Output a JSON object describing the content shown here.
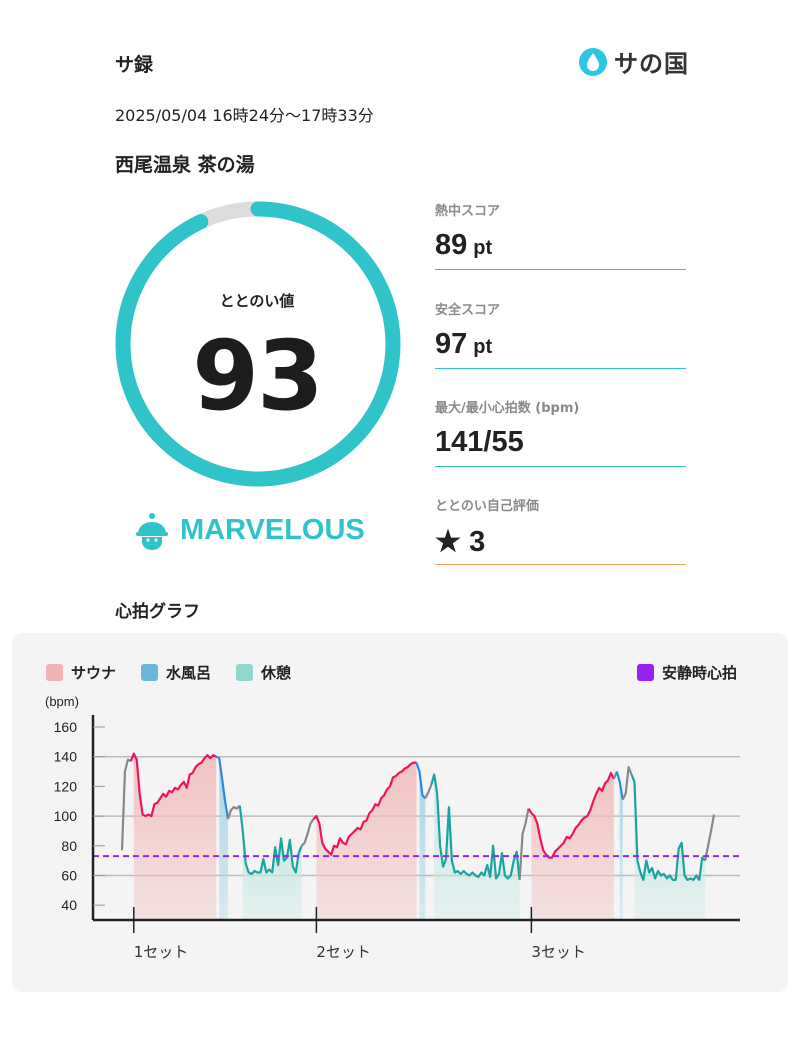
{
  "header": {
    "title": "サ録",
    "logo_text": "サの国",
    "date": "2025/05/04 16時24分〜17時33分",
    "facility": "西尾温泉 茶の湯"
  },
  "score": {
    "label": "ととのい値",
    "value": "93",
    "fraction": 0.93,
    "rank": "MARVELOUS",
    "accent": "#2ec4c9"
  },
  "stats": [
    {
      "label": "熱中スコア",
      "value": "89",
      "unit": "pt"
    },
    {
      "label": "安全スコア",
      "value": "97",
      "unit": "pt"
    },
    {
      "label": "最大/最小心拍数 (bpm)",
      "value": "141/55",
      "unit": ""
    },
    {
      "label": "ととのい自己評価",
      "value": "3",
      "unit": "",
      "icon": "star-icon"
    }
  ],
  "graph": {
    "title": "心拍グラフ"
  },
  "chart_data": {
    "type": "line",
    "ylabel": "(bpm)",
    "yticks": [
      160,
      140,
      120,
      100,
      80,
      60,
      40
    ],
    "ylim": [
      30,
      170
    ],
    "gridlines": [
      140,
      100,
      60
    ],
    "resting_hr": 73,
    "legend": [
      {
        "label": "サウナ",
        "color": "#f2b3b3"
      },
      {
        "label": "水風呂",
        "color": "#6ab7dd"
      },
      {
        "label": "休憩",
        "color": "#8fd8cf"
      }
    ],
    "resting_legend": {
      "label": "安静時心拍",
      "color": "#9b1ff5"
    },
    "phase_colors": {
      "sauna": "#f0145a",
      "water": "#2a8ae0",
      "rest": "#1aa3a0",
      "other": "#888888"
    },
    "set_labels": [
      "1セット",
      "2セット",
      "3セット"
    ],
    "segments": [
      {
        "phase": "other",
        "values": [
          77,
          130,
          138,
          137
        ]
      },
      {
        "phase": "sauna",
        "set": 0,
        "values": [
          142,
          138,
          115,
          101,
          100,
          101,
          100,
          108,
          109,
          112,
          115,
          113,
          117,
          116,
          119,
          118,
          121,
          123,
          119,
          128,
          129,
          133,
          135,
          136,
          139,
          141,
          139,
          141,
          140
        ]
      },
      {
        "phase": "water",
        "values": [
          139,
          125,
          110,
          98
        ]
      },
      {
        "phase": "other",
        "values": [
          104,
          106,
          105,
          107
        ]
      },
      {
        "phase": "rest",
        "values": [
          90,
          68,
          62,
          61,
          63,
          62,
          62,
          71,
          62,
          64,
          62,
          79,
          67,
          85,
          70,
          72,
          84,
          66,
          62,
          75,
          80
        ]
      },
      {
        "phase": "other",
        "values": [
          82,
          88,
          95,
          98
        ]
      },
      {
        "phase": "sauna",
        "set": 1,
        "values": [
          100,
          95,
          82,
          78,
          76,
          74,
          80,
          79,
          85,
          82,
          81,
          86,
          88,
          90,
          92,
          91,
          96,
          97,
          102,
          104,
          108,
          107,
          112,
          114,
          118,
          120,
          126,
          127,
          129,
          130,
          132,
          133,
          135,
          136,
          136
        ]
      },
      {
        "phase": "water",
        "values": [
          130,
          114,
          112
        ]
      },
      {
        "phase": "other",
        "values": [
          116,
          121
        ]
      },
      {
        "phase": "rest",
        "values": [
          128,
          115,
          80,
          66,
          71,
          106,
          70,
          62,
          63,
          61,
          63,
          61,
          60,
          62,
          60,
          59,
          62,
          60,
          67,
          59,
          80,
          58,
          61,
          75,
          60,
          58,
          60,
          70,
          76,
          57
        ]
      },
      {
        "phase": "other",
        "values": [
          88,
          95,
          105
        ]
      },
      {
        "phase": "sauna",
        "set": 2,
        "values": [
          102,
          100,
          95,
          85,
          77,
          74,
          72,
          72,
          76,
          78,
          80,
          82,
          86,
          85,
          88,
          92,
          94,
          97,
          99,
          100,
          104,
          110,
          115,
          119,
          117,
          122,
          124,
          129,
          125
        ]
      },
      {
        "phase": "other",
        "values": [
          130
        ]
      },
      {
        "phase": "water",
        "values": [
          123,
          111
        ]
      },
      {
        "phase": "other",
        "values": [
          115,
          133,
          128
        ]
      },
      {
        "phase": "rest",
        "values": [
          123,
          70,
          62,
          57,
          70,
          62,
          65,
          58,
          63,
          60,
          61,
          58,
          60,
          57,
          57,
          78,
          82,
          60,
          57,
          58,
          57,
          60,
          57,
          72,
          70
        ]
      },
      {
        "phase": "other",
        "values": [
          80,
          90,
          101
        ]
      }
    ]
  }
}
